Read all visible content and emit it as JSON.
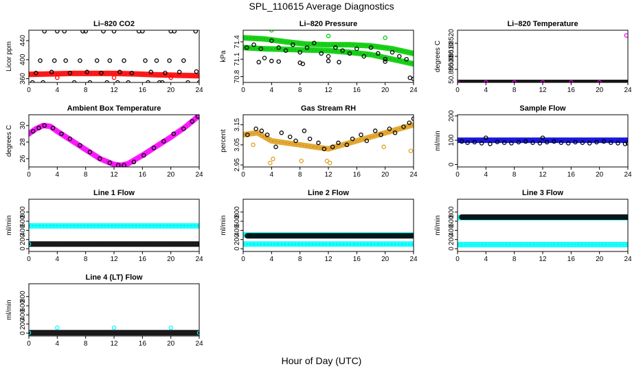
{
  "figure": {
    "title": "SPL_110615  Average Diagnostics",
    "xlabel": "Hour of Day (UTC)"
  },
  "chart_data": [
    {
      "type": "scatter",
      "title": "Li–820 CO2",
      "ylabel": "Licor ppm",
      "xlim": [
        0,
        24
      ],
      "xticks": [
        0,
        4,
        8,
        12,
        16,
        20,
        24
      ],
      "ylim": [
        352,
        462
      ],
      "yticks": [
        360,
        400,
        440
      ],
      "series": [
        {
          "color": "#ff0000",
          "kind": "band",
          "x": [
            0,
            3,
            6,
            9,
            12,
            15,
            18,
            21,
            24
          ],
          "values": [
            369,
            370,
            371,
            371,
            371,
            370,
            368,
            367,
            366
          ]
        },
        {
          "color": "#000000",
          "kind": "points",
          "x": [
            0.5,
            2.2,
            4,
            5,
            7.6,
            8,
            10.5,
            12,
            12.5,
            15.5,
            16,
            18.4,
            20,
            20.5,
            23.5,
            24
          ],
          "values": [
            352,
            460,
            460,
            460,
            460,
            460,
            460,
            460,
            352,
            460,
            460,
            352,
            460,
            460,
            460,
            352
          ]
        },
        {
          "color": "#000000",
          "kind": "points",
          "x": [
            1,
            1.6,
            3.2,
            3.6,
            5.2,
            5.8,
            7.2,
            8.2,
            9.6,
            10.2,
            11.4,
            12.8,
            13.4,
            14.5,
            16.4,
            17.2,
            18,
            19.2,
            19.8,
            21.2,
            21.8,
            23.6
          ],
          "values": [
            372,
            398,
            374,
            398,
            398,
            372,
            398,
            374,
            398,
            372,
            398,
            374,
            398,
            372,
            398,
            374,
            398,
            372,
            398,
            374,
            398,
            375
          ]
        },
        {
          "color": "#000000",
          "kind": "points",
          "x": [
            2,
            6.4,
            8.6,
            11,
            14,
            16.8,
            18.8,
            22.4
          ],
          "values": [
            352,
            352,
            352,
            352,
            352,
            352,
            352,
            352
          ]
        },
        {
          "color": "#ff0000",
          "kind": "points",
          "x": [
            4,
            12,
            20
          ],
          "values": [
            362,
            362,
            362
          ]
        }
      ]
    },
    {
      "type": "scatter",
      "title": "Li–820 Pressure",
      "ylabel": "kPa",
      "xlim": [
        0,
        24
      ],
      "xticks": [
        0,
        4,
        8,
        12,
        16,
        20,
        24
      ],
      "ylim": [
        70.7,
        71.6
      ],
      "yticks": [
        70.8,
        71.1,
        71.4
      ],
      "series": [
        {
          "color": "#00cc00",
          "kind": "band",
          "x": [
            0,
            3,
            6,
            9,
            12,
            15,
            18,
            21,
            24
          ],
          "values": [
            71.47,
            71.45,
            71.4,
            71.36,
            71.35,
            71.35,
            71.33,
            71.28,
            71.2
          ]
        },
        {
          "color": "#00cc00",
          "kind": "band",
          "x": [
            0,
            3,
            6,
            9,
            12,
            15,
            18,
            21,
            24
          ],
          "values": [
            71.3,
            71.28,
            71.27,
            71.26,
            71.25,
            71.22,
            71.18,
            71.1,
            71.02
          ]
        },
        {
          "color": "#00cc00",
          "kind": "points",
          "x": [
            4,
            12,
            20
          ],
          "values": [
            71.6,
            71.5,
            71.47
          ]
        },
        {
          "color": "#000000",
          "kind": "points",
          "x": [
            0.5,
            1.5,
            2.5,
            3,
            4,
            5,
            6,
            7,
            8,
            9,
            10,
            11,
            12,
            13,
            14,
            15,
            16,
            17,
            18,
            19,
            20,
            21,
            22,
            23
          ],
          "values": [
            71.3,
            71.35,
            71.28,
            71.12,
            71.42,
            71.3,
            71.25,
            71.35,
            71.22,
            71.3,
            71.38,
            71.2,
            71.15,
            71.3,
            71.25,
            71.2,
            71.28,
            71.15,
            71.3,
            71.2,
            71.1,
            71.22,
            71.15,
            71.1
          ]
        },
        {
          "color": "#000000",
          "kind": "points",
          "x": [
            2.2,
            4,
            5,
            8,
            8.4,
            12,
            13.5,
            20,
            23.5,
            24
          ],
          "values": [
            71.05,
            71.07,
            71.06,
            71.04,
            71.02,
            71.07,
            71.05,
            71.06,
            70.78,
            70.76
          ]
        }
      ]
    },
    {
      "type": "scatter",
      "title": "Li–820 Temperature",
      "ylabel": "degrees C",
      "xlim": [
        0,
        24
      ],
      "xticks": [
        0,
        4,
        8,
        12,
        16,
        20,
        24
      ],
      "ylim": [
        50.8849,
        50.8853
      ],
      "yticks": [
        50.885,
        50.8851,
        50.8852
      ],
      "yticklabels": [
        "50.88500",
        "50.88510",
        "50.88520"
      ],
      "series": [
        {
          "color": "#000000",
          "kind": "band",
          "x": [
            0,
            24
          ],
          "values": [
            50.8849,
            50.8849
          ]
        },
        {
          "color": "#ff00ff",
          "kind": "points",
          "x": [
            0,
            4,
            8,
            12,
            16,
            20,
            23.8
          ],
          "values": [
            50.8849,
            50.8849,
            50.8849,
            50.8849,
            50.8849,
            50.8849,
            50.88526
          ]
        }
      ]
    },
    {
      "type": "scatter",
      "title": "Ambient Box Temperature",
      "ylabel": "degrees C",
      "xlim": [
        0,
        24
      ],
      "xticks": [
        0,
        4,
        8,
        12,
        16,
        20,
        24
      ],
      "ylim": [
        25,
        31.3
      ],
      "yticks": [
        26,
        28,
        30
      ],
      "series": [
        {
          "color": "#ff00ff",
          "kind": "band",
          "x": [
            0,
            1,
            2,
            3,
            4,
            6,
            8,
            10,
            12,
            13,
            14,
            16,
            18,
            20,
            22,
            24
          ],
          "values": [
            29,
            29.6,
            30,
            29.9,
            29.3,
            28.2,
            27.1,
            26,
            25.3,
            25.2,
            25.4,
            26.4,
            27.5,
            28.6,
            29.8,
            31.2
          ]
        },
        {
          "color": "#000000",
          "kind": "points",
          "x": [
            0.6,
            1.4,
            2.2,
            3.4,
            4.6,
            5.8,
            7.2,
            8.6,
            10,
            11.4,
            12.6,
            13.4,
            14.8,
            16.2,
            17.6,
            19,
            20.4,
            21.8,
            23,
            23.8
          ],
          "values": [
            29.3,
            29.7,
            30,
            29.7,
            29,
            28.4,
            27.6,
            26.8,
            26,
            25.5,
            25.2,
            25.2,
            25.6,
            26.4,
            27.3,
            28.1,
            29,
            29.6,
            30.5,
            31.1
          ]
        },
        {
          "color": "#ff00ff",
          "kind": "points",
          "x": [
            0
          ],
          "values": [
            29
          ]
        }
      ]
    },
    {
      "type": "scatter",
      "title": "Gas Stream RH",
      "ylabel": "percent",
      "xlim": [
        0,
        24
      ],
      "xticks": [
        0,
        4,
        8,
        12,
        16,
        20,
        24
      ],
      "ylim": [
        2.94,
        3.2
      ],
      "yticks": [
        2.95,
        3.05,
        3.15
      ],
      "yticklabels": [
        "2.95",
        "3.05",
        "3.15"
      ],
      "series": [
        {
          "color": "#e0a020",
          "kind": "band",
          "x": [
            0,
            2,
            3,
            4,
            6,
            8,
            10,
            12,
            14,
            16,
            18,
            20,
            22,
            24
          ],
          "values": [
            3.1,
            3.11,
            3.09,
            3.07,
            3.06,
            3.05,
            3.04,
            3.03,
            3.05,
            3.07,
            3.09,
            3.11,
            3.13,
            3.15
          ]
        },
        {
          "color": "#e0a020",
          "kind": "points",
          "x": [
            1.4,
            3.8,
            4.2,
            8.2,
            11.8,
            12.2,
            19.8,
            23.6
          ],
          "values": [
            3.05,
            2.96,
            2.98,
            2.97,
            2.97,
            2.96,
            3.04,
            3.02
          ]
        },
        {
          "color": "#000000",
          "kind": "points",
          "x": [
            0.6,
            1.8,
            2.6,
            3.4,
            4.6,
            5.4,
            6.6,
            7.4,
            8.6,
            9.4,
            10.6,
            11.4,
            12.6,
            13.4,
            14.6,
            15.4,
            16.6,
            17.4,
            18.6,
            19.4,
            20.6,
            21.4,
            22.6,
            23.4,
            24
          ],
          "values": [
            3.1,
            3.13,
            3.12,
            3.1,
            3.04,
            3.11,
            3.09,
            3.07,
            3.12,
            3.08,
            3.06,
            3.03,
            3.04,
            3.06,
            3.05,
            3.08,
            3.1,
            3.07,
            3.12,
            3.1,
            3.13,
            3.11,
            3.14,
            3.16,
            3.18
          ]
        }
      ]
    },
    {
      "type": "scatter",
      "title": "Sample Flow",
      "ylabel": "ml/min",
      "xlim": [
        0,
        24
      ],
      "xticks": [
        0,
        4,
        8,
        12,
        16,
        20,
        24
      ],
      "ylim": [
        -10,
        205
      ],
      "yticks": [
        0,
        100,
        200
      ],
      "series": [
        {
          "color": "#0000dd",
          "kind": "band",
          "x": [
            0,
            24
          ],
          "values": [
            100,
            100
          ]
        },
        {
          "color": "#000000",
          "kind": "points",
          "x": [
            0.6,
            1.4,
            2.4,
            3.4,
            4,
            4.6,
            5.6,
            6.6,
            7.6,
            8.6,
            9.6,
            10.6,
            11.6,
            12,
            12.6,
            13.6,
            14.6,
            15.6,
            16.6,
            17.6,
            18.6,
            19.6,
            20.6,
            21.6,
            22.6,
            23.6,
            24
          ],
          "values": [
            95,
            90,
            92,
            88,
            110,
            85,
            93,
            90,
            88,
            92,
            95,
            90,
            88,
            110,
            92,
            95,
            90,
            88,
            92,
            90,
            88,
            92,
            95,
            90,
            88,
            85,
            88
          ]
        }
      ]
    },
    {
      "type": "scatter",
      "title": "Line 1 Flow",
      "ylabel": "ml/min",
      "xlim": [
        0,
        24
      ],
      "xticks": [
        0,
        4,
        8,
        12,
        16,
        20,
        24
      ],
      "ylim": [
        -60,
        1080
      ],
      "yticks": [
        0,
        200,
        400,
        600,
        800
      ],
      "series": [
        {
          "color": "#00ffff",
          "kind": "band",
          "x": [
            0,
            24
          ],
          "values": [
            500,
            500
          ]
        },
        {
          "color": "#000000",
          "kind": "band",
          "x": [
            0,
            24
          ],
          "values": [
            100,
            100
          ]
        },
        {
          "color": "#00ffff",
          "kind": "points",
          "x": [
            0
          ],
          "values": [
            100
          ]
        }
      ]
    },
    {
      "type": "scatter",
      "title": "Line 2 Flow",
      "ylabel": "ml/min",
      "xlim": [
        0,
        24
      ],
      "xticks": [
        0,
        4,
        8,
        12,
        16,
        20,
        24
      ],
      "ylim": [
        -60,
        1080
      ],
      "yticks": [
        0,
        200,
        400,
        600,
        800
      ],
      "series": [
        {
          "color": "#00ffff",
          "kind": "band",
          "x": [
            0,
            24
          ],
          "values": [
            300,
            300
          ]
        },
        {
          "color": "#000000",
          "kind": "band",
          "x": [
            0.6,
            24
          ],
          "values": [
            280,
            280
          ]
        },
        {
          "color": "#00ffff",
          "kind": "band",
          "x": [
            0,
            24
          ],
          "values": [
            100,
            100
          ]
        }
      ]
    },
    {
      "type": "scatter",
      "title": "Line 3 Flow",
      "ylabel": "ml/min",
      "xlim": [
        0,
        24
      ],
      "xticks": [
        0,
        4,
        8,
        12,
        16,
        20,
        24
      ],
      "ylim": [
        -60,
        1080
      ],
      "yticks": [
        0,
        200,
        400,
        600,
        800
      ],
      "series": [
        {
          "color": "#00ffff",
          "kind": "band",
          "x": [
            0,
            24
          ],
          "values": [
            680,
            680
          ]
        },
        {
          "color": "#000000",
          "kind": "band",
          "x": [
            0.6,
            24
          ],
          "values": [
            690,
            690
          ]
        },
        {
          "color": "#00ffff",
          "kind": "band",
          "x": [
            0,
            24
          ],
          "values": [
            90,
            90
          ]
        }
      ]
    },
    {
      "type": "scatter",
      "title": "Line 4 (LT) Flow",
      "ylabel": "ml/min",
      "xlim": [
        0,
        24
      ],
      "xticks": [
        0,
        4,
        8,
        12,
        16,
        20,
        24
      ],
      "ylim": [
        -60,
        1080
      ],
      "yticks": [
        0,
        200,
        400,
        600,
        800
      ],
      "series": [
        {
          "color": "#000000",
          "kind": "band",
          "x": [
            0,
            24
          ],
          "values": [
            10,
            10
          ]
        },
        {
          "color": "#00ffff",
          "kind": "points",
          "x": [
            0,
            4,
            12,
            20,
            24
          ],
          "values": [
            10,
            120,
            120,
            120,
            10
          ]
        }
      ]
    }
  ]
}
